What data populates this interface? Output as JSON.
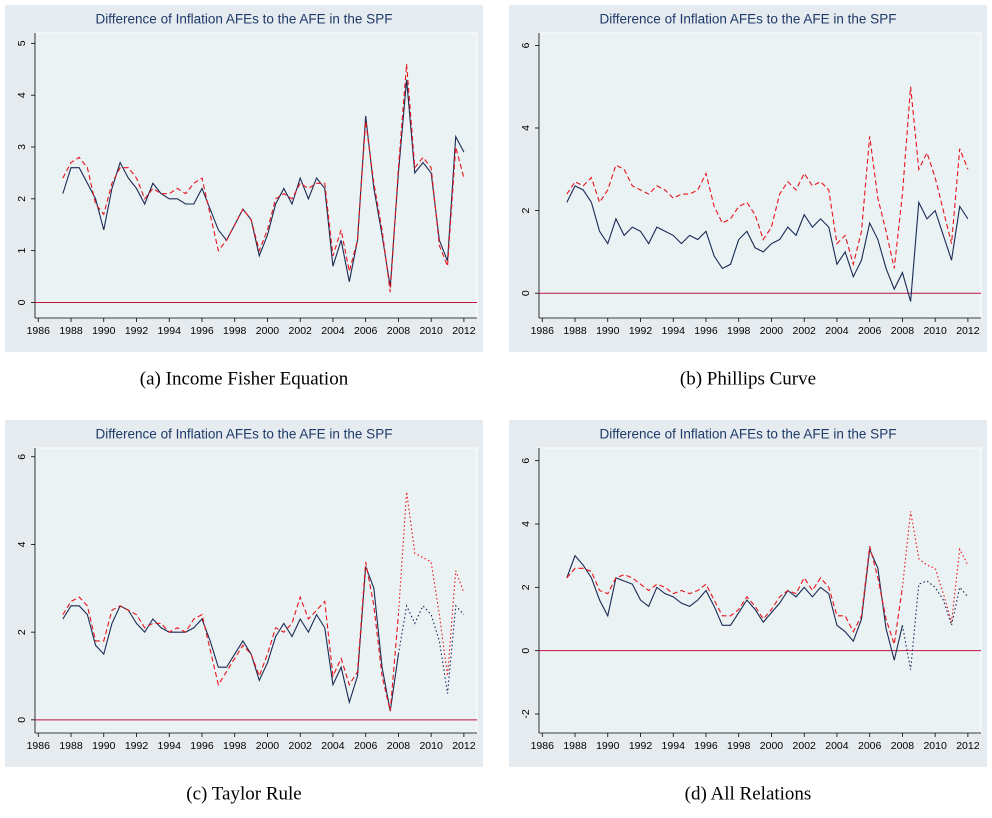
{
  "chart_data": [
    {
      "type": "line",
      "title": "Difference of Inflation AFEs to the AFE in the SPF",
      "caption": "(a) Income Fisher Equation",
      "x": [
        1987.5,
        1988,
        1988.5,
        1989,
        1989.5,
        1990,
        1990.5,
        1991,
        1991.5,
        1992,
        1992.5,
        1993,
        1993.5,
        1994,
        1994.5,
        1995,
        1995.5,
        1996,
        1996.5,
        1997,
        1997.5,
        1998,
        1998.5,
        1999,
        1999.5,
        2000,
        2000.5,
        2001,
        2001.5,
        2002,
        2002.5,
        2003,
        2003.5,
        2004,
        2004.5,
        2005,
        2005.5,
        2006,
        2006.5,
        2007,
        2007.5,
        2008,
        2008.5,
        2009,
        2009.5,
        2010,
        2010.5,
        2011,
        2011.5,
        2012
      ],
      "xlim": [
        1985.8,
        2012.8
      ],
      "xticks": [
        1986,
        1988,
        1990,
        1992,
        1994,
        1996,
        1998,
        2000,
        2002,
        2004,
        2006,
        2008,
        2010,
        2012
      ],
      "ylim": [
        -0.3,
        5.2
      ],
      "yticks": [
        0,
        1,
        2,
        3,
        4,
        5
      ],
      "hline": 0,
      "hline_color": "#c0143c",
      "series": [
        {
          "color": "#1a2a55",
          "dash": "solid",
          "values": [
            2.1,
            2.6,
            2.6,
            2.3,
            2.0,
            1.4,
            2.2,
            2.7,
            2.4,
            2.2,
            1.9,
            2.3,
            2.1,
            2.0,
            2.0,
            1.9,
            1.9,
            2.2,
            1.8,
            1.4,
            1.2,
            1.5,
            1.8,
            1.6,
            0.9,
            1.3,
            1.9,
            2.2,
            1.9,
            2.4,
            2.0,
            2.4,
            2.2,
            0.7,
            1.2,
            0.4,
            1.2,
            3.6,
            2.2,
            1.3,
            0.3,
            2.5,
            4.3,
            2.5,
            2.7,
            2.5,
            1.2,
            0.8,
            3.2,
            2.9
          ]
        },
        {
          "color": "#e8141c",
          "dash": "dashed",
          "values": [
            2.4,
            2.7,
            2.8,
            2.6,
            1.9,
            1.7,
            2.3,
            2.6,
            2.6,
            2.4,
            2.0,
            2.2,
            2.1,
            2.1,
            2.2,
            2.1,
            2.3,
            2.4,
            1.7,
            1.0,
            1.2,
            1.5,
            1.8,
            1.6,
            1.0,
            1.4,
            2.0,
            2.1,
            2.0,
            2.3,
            2.2,
            2.3,
            2.3,
            0.9,
            1.4,
            0.6,
            1.2,
            3.5,
            2.3,
            1.4,
            0.2,
            2.6,
            4.6,
            2.6,
            2.8,
            2.6,
            1.1,
            0.7,
            3.0,
            2.4
          ]
        }
      ]
    },
    {
      "type": "line",
      "title": "Difference of Inflation AFEs to the AFE in the SPF",
      "caption": "(b) Phillips Curve",
      "x": [
        1987.5,
        1988,
        1988.5,
        1989,
        1989.5,
        1990,
        1990.5,
        1991,
        1991.5,
        1992,
        1992.5,
        1993,
        1993.5,
        1994,
        1994.5,
        1995,
        1995.5,
        1996,
        1996.5,
        1997,
        1997.5,
        1998,
        1998.5,
        1999,
        1999.5,
        2000,
        2000.5,
        2001,
        2001.5,
        2002,
        2002.5,
        2003,
        2003.5,
        2004,
        2004.5,
        2005,
        2005.5,
        2006,
        2006.5,
        2007,
        2007.5,
        2008,
        2008.5,
        2009,
        2009.5,
        2010,
        2010.5,
        2011,
        2011.5,
        2012
      ],
      "xlim": [
        1985.8,
        2012.8
      ],
      "xticks": [
        1986,
        1988,
        1990,
        1992,
        1994,
        1996,
        1998,
        2000,
        2002,
        2004,
        2006,
        2008,
        2010,
        2012
      ],
      "ylim": [
        -0.6,
        6.3
      ],
      "yticks": [
        0,
        2,
        4,
        6
      ],
      "hline": 0,
      "hline_color": "#c0143c",
      "series": [
        {
          "color": "#1a2a55",
          "dash": "solid",
          "values": [
            2.2,
            2.6,
            2.5,
            2.2,
            1.5,
            1.2,
            1.8,
            1.4,
            1.6,
            1.5,
            1.2,
            1.6,
            1.5,
            1.4,
            1.2,
            1.4,
            1.3,
            1.5,
            0.9,
            0.6,
            0.7,
            1.3,
            1.5,
            1.1,
            1.0,
            1.2,
            1.3,
            1.6,
            1.4,
            1.9,
            1.6,
            1.8,
            1.6,
            0.7,
            1.0,
            0.4,
            0.8,
            1.7,
            1.3,
            0.6,
            0.1,
            0.5,
            -0.2,
            2.2,
            1.8,
            2.0,
            1.4,
            0.8,
            2.1,
            1.8
          ]
        },
        {
          "color": "#e8141c",
          "dash": "dashed",
          "values": [
            2.4,
            2.7,
            2.6,
            2.8,
            2.2,
            2.5,
            3.1,
            3.0,
            2.6,
            2.5,
            2.4,
            2.6,
            2.5,
            2.3,
            2.4,
            2.4,
            2.5,
            2.9,
            2.1,
            1.7,
            1.8,
            2.1,
            2.2,
            1.9,
            1.3,
            1.6,
            2.4,
            2.7,
            2.5,
            2.9,
            2.6,
            2.7,
            2.5,
            1.2,
            1.4,
            0.7,
            1.5,
            3.8,
            2.3,
            1.5,
            0.6,
            2.4,
            5.0,
            3.0,
            3.4,
            2.8,
            2.0,
            1.2,
            3.5,
            3.0
          ]
        }
      ]
    },
    {
      "type": "line",
      "title": "Difference of Inflation AFEs to the AFE in the SPF",
      "caption": "(c) Taylor Rule",
      "x": [
        1987.5,
        1988,
        1988.5,
        1989,
        1989.5,
        1990,
        1990.5,
        1991,
        1991.5,
        1992,
        1992.5,
        1993,
        1993.5,
        1994,
        1994.5,
        1995,
        1995.5,
        1996,
        1996.5,
        1997,
        1997.5,
        1998,
        1998.5,
        1999,
        1999.5,
        2000,
        2000.5,
        2001,
        2001.5,
        2002,
        2002.5,
        2003,
        2003.5,
        2004,
        2004.5,
        2005,
        2005.5,
        2006,
        2006.5,
        2007,
        2007.5,
        2008,
        2008.5,
        2009,
        2009.5,
        2010,
        2010.5,
        2011,
        2011.5,
        2012
      ],
      "xlim": [
        1985.8,
        2012.8
      ],
      "xticks": [
        1986,
        1988,
        1990,
        1992,
        1994,
        1996,
        1998,
        2000,
        2002,
        2004,
        2006,
        2008,
        2010,
        2012
      ],
      "ylim": [
        -0.3,
        6.2
      ],
      "yticks": [
        0,
        2,
        4,
        6
      ],
      "hline": 0,
      "hline_color": "#c0143c",
      "series": [
        {
          "color": "#1a2a55",
          "dash": "solid",
          "values": [
            2.3,
            2.6,
            2.6,
            2.4,
            1.7,
            1.5,
            2.2,
            2.6,
            2.5,
            2.2,
            2.0,
            2.3,
            2.1,
            2.0,
            2.0,
            2.0,
            2.1,
            2.3,
            1.8,
            1.2,
            1.2,
            1.5,
            1.8,
            1.5,
            0.9,
            1.3,
            1.9,
            2.2,
            1.9,
            2.3,
            2.0,
            2.4,
            2.1,
            0.8,
            1.2,
            0.4,
            1.0,
            3.5,
            3.0,
            1.2,
            0.2,
            1.5,
            null,
            null,
            null,
            null,
            null,
            null,
            null,
            null
          ]
        },
        {
          "color": "#e8141c",
          "dash": "dashed",
          "values": [
            2.4,
            2.7,
            2.8,
            2.6,
            1.8,
            1.8,
            2.5,
            2.6,
            2.5,
            2.4,
            2.1,
            2.2,
            2.2,
            2.0,
            2.1,
            2.0,
            2.3,
            2.4,
            1.6,
            0.8,
            1.1,
            1.4,
            1.7,
            1.5,
            1.0,
            1.5,
            2.1,
            2.0,
            2.2,
            2.8,
            2.3,
            2.5,
            2.7,
            1.0,
            1.4,
            0.8,
            1.1,
            3.6,
            2.6,
            1.0,
            0.2,
            2.4,
            null,
            null,
            null,
            null,
            null,
            null,
            null,
            null
          ]
        },
        {
          "color": "#1a2a55",
          "dash": "dotted",
          "values": [
            null,
            null,
            null,
            null,
            null,
            null,
            null,
            null,
            null,
            null,
            null,
            null,
            null,
            null,
            null,
            null,
            null,
            null,
            null,
            null,
            null,
            null,
            null,
            null,
            null,
            null,
            null,
            null,
            null,
            null,
            null,
            null,
            null,
            null,
            null,
            null,
            null,
            null,
            null,
            null,
            null,
            1.5,
            2.6,
            2.2,
            2.6,
            2.4,
            1.8,
            0.6,
            2.6,
            2.4
          ]
        },
        {
          "color": "#e8141c",
          "dash": "dotted",
          "values": [
            null,
            null,
            null,
            null,
            null,
            null,
            null,
            null,
            null,
            null,
            null,
            null,
            null,
            null,
            null,
            null,
            null,
            null,
            null,
            null,
            null,
            null,
            null,
            null,
            null,
            null,
            null,
            null,
            null,
            null,
            null,
            null,
            null,
            null,
            null,
            null,
            null,
            null,
            null,
            null,
            null,
            2.4,
            5.2,
            3.8,
            3.7,
            3.6,
            2.4,
            1.0,
            3.4,
            2.9
          ]
        }
      ]
    },
    {
      "type": "line",
      "title": "Difference of Inflation AFEs to the AFE in the SPF",
      "caption": "(d) All Relations",
      "x": [
        1987.5,
        1988,
        1988.5,
        1989,
        1989.5,
        1990,
        1990.5,
        1991,
        1991.5,
        1992,
        1992.5,
        1993,
        1993.5,
        1994,
        1994.5,
        1995,
        1995.5,
        1996,
        1996.5,
        1997,
        1997.5,
        1998,
        1998.5,
        1999,
        1999.5,
        2000,
        2000.5,
        2001,
        2001.5,
        2002,
        2002.5,
        2003,
        2003.5,
        2004,
        2004.5,
        2005,
        2005.5,
        2006,
        2006.5,
        2007,
        2007.5,
        2008,
        2008.5,
        2009,
        2009.5,
        2010,
        2010.5,
        2011,
        2011.5,
        2012
      ],
      "xlim": [
        1985.8,
        2012.8
      ],
      "xticks": [
        1986,
        1988,
        1990,
        1992,
        1994,
        1996,
        1998,
        2000,
        2002,
        2004,
        2006,
        2008,
        2010,
        2012
      ],
      "ylim": [
        -2.6,
        6.4
      ],
      "yticks": [
        -2,
        0,
        2,
        4,
        6
      ],
      "hline": 0,
      "hline_color": "#c0143c",
      "series": [
        {
          "color": "#1a2a55",
          "dash": "solid",
          "values": [
            2.3,
            3.0,
            2.7,
            2.3,
            1.6,
            1.1,
            2.3,
            2.2,
            2.1,
            1.6,
            1.4,
            2.0,
            1.8,
            1.7,
            1.5,
            1.4,
            1.6,
            1.9,
            1.4,
            0.8,
            0.8,
            1.2,
            1.6,
            1.3,
            0.9,
            1.2,
            1.5,
            1.9,
            1.7,
            2.0,
            1.7,
            2.0,
            1.8,
            0.8,
            0.6,
            0.3,
            1.0,
            3.2,
            2.6,
            0.7,
            -0.3,
            0.8,
            null,
            null,
            null,
            null,
            null,
            null,
            null,
            null
          ]
        },
        {
          "color": "#e8141c",
          "dash": "dashed",
          "values": [
            2.3,
            2.6,
            2.6,
            2.5,
            1.9,
            1.8,
            2.3,
            2.4,
            2.3,
            2.1,
            1.9,
            2.1,
            2.0,
            1.8,
            1.9,
            1.8,
            1.9,
            2.1,
            1.6,
            1.1,
            1.1,
            1.3,
            1.7,
            1.4,
            1.0,
            1.3,
            1.7,
            1.9,
            1.8,
            2.3,
            1.9,
            2.3,
            2.0,
            1.1,
            1.1,
            0.6,
            1.1,
            3.3,
            2.3,
            1.0,
            0.2,
            2.0,
            null,
            null,
            null,
            null,
            null,
            null,
            null,
            null
          ]
        },
        {
          "color": "#1a2a55",
          "dash": "dotted",
          "values": [
            null,
            null,
            null,
            null,
            null,
            null,
            null,
            null,
            null,
            null,
            null,
            null,
            null,
            null,
            null,
            null,
            null,
            null,
            null,
            null,
            null,
            null,
            null,
            null,
            null,
            null,
            null,
            null,
            null,
            null,
            null,
            null,
            null,
            null,
            null,
            null,
            null,
            null,
            null,
            null,
            null,
            0.8,
            -0.6,
            2.1,
            2.2,
            2.0,
            1.6,
            0.8,
            2.0,
            1.7
          ]
        },
        {
          "color": "#e8141c",
          "dash": "dotted",
          "values": [
            null,
            null,
            null,
            null,
            null,
            null,
            null,
            null,
            null,
            null,
            null,
            null,
            null,
            null,
            null,
            null,
            null,
            null,
            null,
            null,
            null,
            null,
            null,
            null,
            null,
            null,
            null,
            null,
            null,
            null,
            null,
            null,
            null,
            null,
            null,
            null,
            null,
            null,
            null,
            null,
            null,
            2.0,
            4.4,
            2.9,
            2.7,
            2.6,
            1.8,
            0.9,
            3.2,
            2.7
          ]
        }
      ]
    }
  ]
}
